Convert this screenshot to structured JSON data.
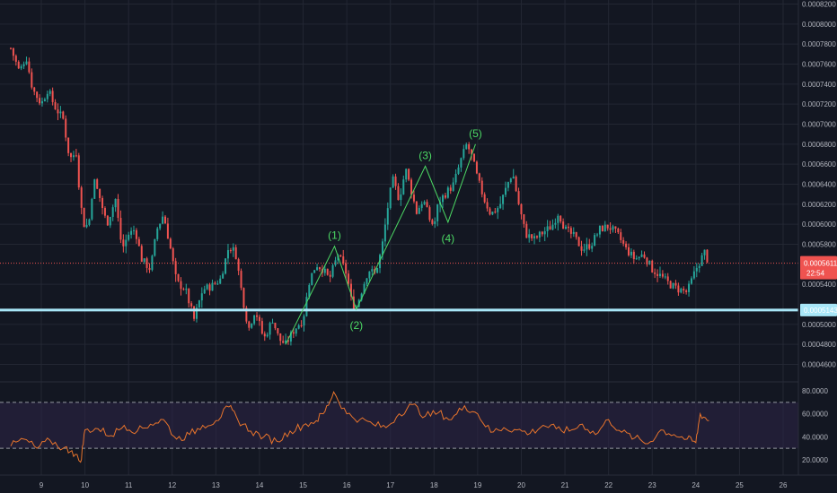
{
  "colors": {
    "background": "#131722",
    "grid": "#232733",
    "up": "#26a69a",
    "down": "#ef5350",
    "wave": "#4cd964",
    "support": "#a8e6f7",
    "current_price": "#ef5350",
    "rsi": "#e8742c",
    "rsi_band": "#2d2547"
  },
  "chart_data": [
    {
      "type": "candlestick",
      "title": "",
      "xlabel": "",
      "ylabel": "",
      "grid": true,
      "x_ticks": [
        "9",
        "10",
        "11",
        "12",
        "13",
        "14",
        "15",
        "16",
        "17",
        "18",
        "19",
        "20",
        "21",
        "22",
        "23",
        "24",
        "25",
        "26"
      ],
      "x_range": [
        8.3,
        26.5
      ],
      "ylim": [
        0.00044,
        0.00082
      ],
      "y_ticks": [
        "0.0008200",
        "0.0008000",
        "0.0007800",
        "0.0007600",
        "0.0007400",
        "0.0007200",
        "0.0007000",
        "0.0006800",
        "0.0006600",
        "0.0006400",
        "0.0006200",
        "0.0006000",
        "0.0005800",
        "0.0005400",
        "0.0005000",
        "0.0004800",
        "0.0004600"
      ],
      "price_path": [
        [
          8.3,
          0.000776
        ],
        [
          8.5,
          0.000752
        ],
        [
          8.65,
          0.000768
        ],
        [
          8.8,
          0.000735
        ],
        [
          9.0,
          0.00072
        ],
        [
          9.15,
          0.000735
        ],
        [
          9.3,
          0.000718
        ],
        [
          9.5,
          0.000705
        ],
        [
          9.65,
          0.000665
        ],
        [
          9.8,
          0.000672
        ],
        [
          9.9,
          0.00062
        ],
        [
          10.0,
          0.000595
        ],
        [
          10.1,
          0.000605
        ],
        [
          10.2,
          0.000645
        ],
        [
          10.35,
          0.000625
        ],
        [
          10.5,
          0.0006
        ],
        [
          10.7,
          0.000625
        ],
        [
          10.85,
          0.000575
        ],
        [
          11.0,
          0.00059
        ],
        [
          11.15,
          0.000595
        ],
        [
          11.3,
          0.000565
        ],
        [
          11.5,
          0.000555
        ],
        [
          11.65,
          0.000595
        ],
        [
          11.8,
          0.00061
        ],
        [
          11.95,
          0.000578
        ],
        [
          12.1,
          0.000542
        ],
        [
          12.3,
          0.000535
        ],
        [
          12.5,
          0.000505
        ],
        [
          12.7,
          0.000535
        ],
        [
          12.9,
          0.000538
        ],
        [
          13.1,
          0.000545
        ],
        [
          13.3,
          0.000578
        ],
        [
          13.45,
          0.000572
        ],
        [
          13.6,
          0.00053
        ],
        [
          13.75,
          0.000495
        ],
        [
          13.9,
          0.000515
        ],
        [
          14.1,
          0.000485
        ],
        [
          14.3,
          0.000505
        ],
        [
          14.45,
          0.000485
        ],
        [
          14.6,
          0.00048
        ],
        [
          14.8,
          0.000495
        ],
        [
          15.0,
          0.000505
        ],
        [
          15.15,
          0.000545
        ],
        [
          15.3,
          0.00056
        ],
        [
          15.45,
          0.000555
        ],
        [
          15.6,
          0.000545
        ],
        [
          15.8,
          0.00057
        ],
        [
          16.0,
          0.00055
        ],
        [
          16.1,
          0.000525
        ],
        [
          16.2,
          0.000515
        ],
        [
          16.35,
          0.000535
        ],
        [
          16.5,
          0.000555
        ],
        [
          16.65,
          0.00055
        ],
        [
          16.8,
          0.000575
        ],
        [
          16.95,
          0.00062
        ],
        [
          17.05,
          0.000645
        ],
        [
          17.2,
          0.000625
        ],
        [
          17.35,
          0.000655
        ],
        [
          17.45,
          0.000638
        ],
        [
          17.6,
          0.000612
        ],
        [
          17.75,
          0.000625
        ],
        [
          17.9,
          0.000605
        ],
        [
          18.0,
          0.000598
        ],
        [
          18.1,
          0.000622
        ],
        [
          18.25,
          0.00063
        ],
        [
          18.45,
          0.00064
        ],
        [
          18.6,
          0.000662
        ],
        [
          18.75,
          0.00068
        ],
        [
          18.85,
          0.00067
        ],
        [
          19.0,
          0.000645
        ],
        [
          19.15,
          0.000625
        ],
        [
          19.3,
          0.00061
        ],
        [
          19.5,
          0.000618
        ],
        [
          19.7,
          0.000642
        ],
        [
          19.8,
          0.000652
        ],
        [
          19.95,
          0.000618
        ],
        [
          20.1,
          0.00059
        ],
        [
          20.3,
          0.000585
        ],
        [
          20.5,
          0.000592
        ],
        [
          20.7,
          0.000598
        ],
        [
          20.85,
          0.000612
        ],
        [
          21.0,
          0.000595
        ],
        [
          21.2,
          0.000588
        ],
        [
          21.4,
          0.000575
        ],
        [
          21.6,
          0.00058
        ],
        [
          21.8,
          0.000595
        ],
        [
          22.0,
          0.000598
        ],
        [
          22.2,
          0.00059
        ],
        [
          22.4,
          0.000575
        ],
        [
          22.6,
          0.000565
        ],
        [
          22.8,
          0.00057
        ],
        [
          23.0,
          0.000555
        ],
        [
          23.2,
          0.000548
        ],
        [
          23.4,
          0.00054
        ],
        [
          23.6,
          0.000535
        ],
        [
          23.8,
          0.000532
        ],
        [
          24.0,
          0.000555
        ],
        [
          24.2,
          0.000572
        ],
        [
          24.3,
          0.000561
        ]
      ],
      "current_price": {
        "value": 0.0005611,
        "label": "0.0005611",
        "countdown": "22:54"
      },
      "support_line": {
        "value": 0.0005143,
        "label": "0.0005143"
      },
      "wave_labels": [
        {
          "label": "(1)",
          "x": 15.72,
          "y": 0.000578
        },
        {
          "label": "(2)",
          "x": 16.22,
          "y": 0.000515
        },
        {
          "label": "(3)",
          "x": 17.8,
          "y": 0.000658
        },
        {
          "label": "(4)",
          "x": 18.32,
          "y": 0.000602
        },
        {
          "label": "(5)",
          "x": 18.95,
          "y": 0.00068
        }
      ],
      "wave_path": [
        [
          14.6,
          0.00048
        ],
        [
          15.72,
          0.000578
        ],
        [
          16.22,
          0.000515
        ],
        [
          17.8,
          0.000658
        ],
        [
          18.32,
          0.000602
        ],
        [
          18.95,
          0.00068
        ]
      ]
    },
    {
      "type": "line",
      "title": "",
      "ylim": [
        10,
        85
      ],
      "y_ticks": [
        "80.0000",
        "60.0000",
        "40.0000",
        "20.0000"
      ],
      "band": [
        30,
        70
      ],
      "series": [
        {
          "x": [
            8.3,
            8.6,
            8.9,
            9.2,
            9.5,
            9.7,
            9.9,
            10.0,
            10.3,
            10.6,
            10.9,
            11.2,
            11.5,
            11.8,
            12.1,
            12.4,
            12.7,
            13.0,
            13.3,
            13.5,
            13.8,
            14.1,
            14.4,
            14.7,
            15.0,
            15.3,
            15.5,
            15.7,
            16.0,
            16.3,
            16.6,
            16.9,
            17.2,
            17.5,
            17.8,
            18.1,
            18.4,
            18.7,
            19.0,
            19.3,
            19.6,
            19.9,
            20.2,
            20.5,
            20.8,
            21.1,
            21.4,
            21.7,
            22.0,
            22.3,
            22.6,
            22.9,
            23.2,
            23.5,
            23.8,
            24.0,
            24.1,
            24.3
          ],
          "values": [
            32,
            38,
            30,
            37,
            30,
            28,
            18,
            46,
            47,
            41,
            50,
            45,
            51,
            55,
            38,
            42,
            50,
            54,
            66,
            55,
            45,
            40,
            36,
            45,
            50,
            54,
            62,
            79,
            60,
            55,
            51,
            48,
            60,
            68,
            58,
            61,
            55,
            67,
            60,
            44,
            48,
            46,
            43,
            50,
            47,
            45,
            51,
            42,
            55,
            44,
            39,
            34,
            46,
            42,
            38,
            35,
            60,
            54
          ]
        }
      ]
    }
  ]
}
